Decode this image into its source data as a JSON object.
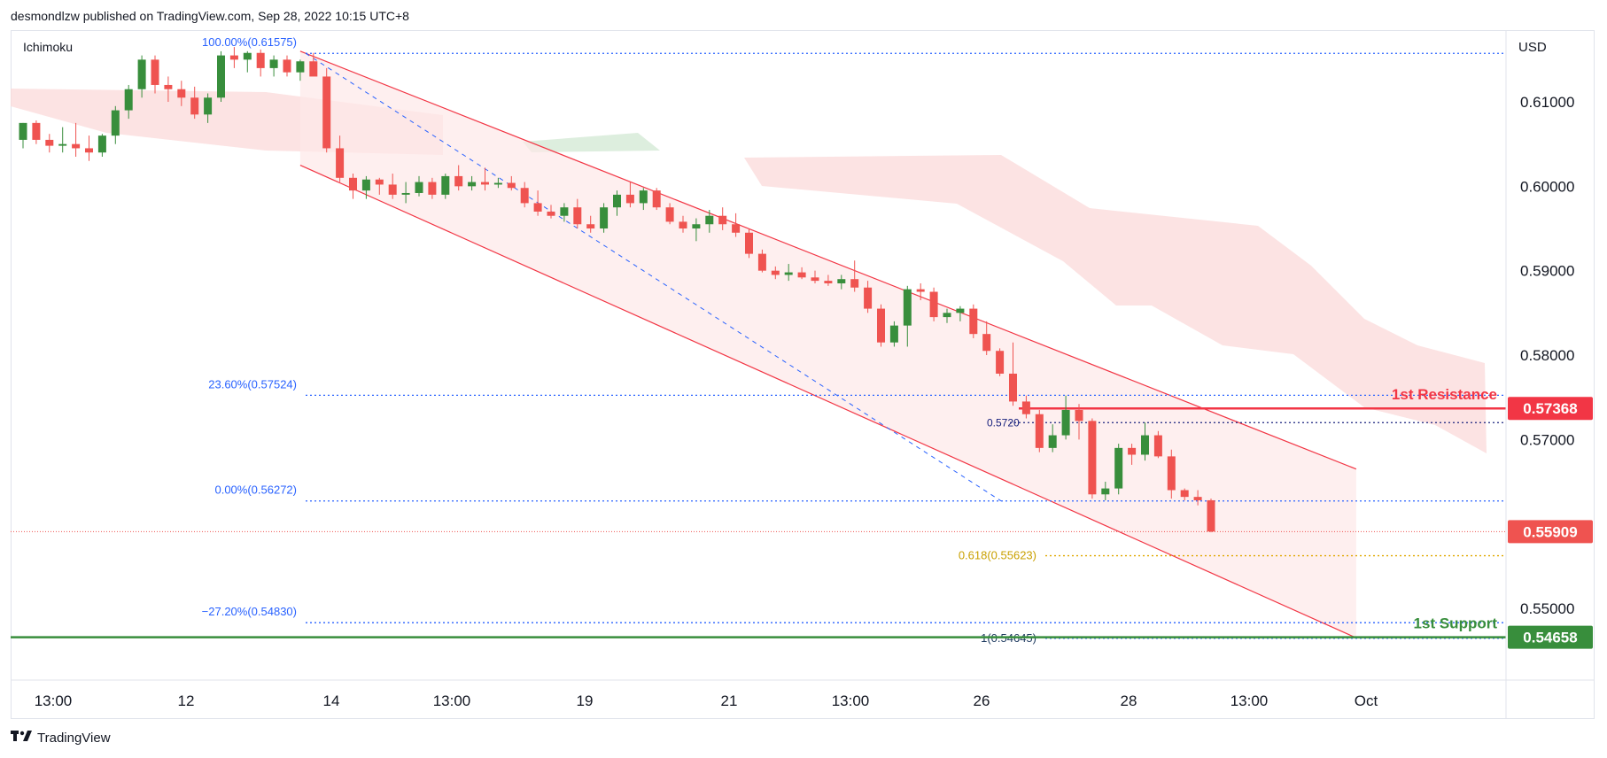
{
  "header": {
    "attribution": "desmondlzw published on TradingView.com, Sep 28, 2022 10:15 UTC+8"
  },
  "footer": {
    "brand": "TradingView",
    "logo": "tradingview-logo-icon"
  },
  "indicator_label": "Ichimoku",
  "currency": "USD",
  "colors": {
    "up": "#388e3c",
    "down": "#ef5350",
    "channel": "#f23645",
    "cloud_red": "#fbd9d9",
    "cloud_green": "#d4ead6",
    "fib": "#2962ff",
    "fib_text": "#2962ff",
    "ext_gold": "#e0a800",
    "resistance": "#f23645",
    "support": "#388e3c",
    "price": "#ef5350"
  },
  "chart_data": {
    "type": "candlestick",
    "title": "",
    "ylim": [
      0.5415,
      0.6185
    ],
    "y_ticks": [
      "0.61000",
      "0.60000",
      "0.59000",
      "0.58000",
      "0.57000",
      "0.55000"
    ],
    "x_ticks": [
      "13:00",
      "12",
      "14",
      "13:00",
      "19",
      "21",
      "13:00",
      "26",
      "28",
      "13:00",
      "Oct"
    ],
    "candles": [
      [
        0.6055,
        0.6075,
        0.6045,
        0.6075
      ],
      [
        0.6075,
        0.6078,
        0.605,
        0.6055
      ],
      [
        0.6055,
        0.6062,
        0.604,
        0.6048
      ],
      [
        0.6048,
        0.607,
        0.604,
        0.605
      ],
      [
        0.605,
        0.6075,
        0.6035,
        0.6045
      ],
      [
        0.6045,
        0.606,
        0.603,
        0.604
      ],
      [
        0.604,
        0.6062,
        0.6035,
        0.606
      ],
      [
        0.606,
        0.6095,
        0.605,
        0.609
      ],
      [
        0.609,
        0.612,
        0.608,
        0.6115
      ],
      [
        0.6115,
        0.6155,
        0.6105,
        0.615
      ],
      [
        0.615,
        0.6155,
        0.611,
        0.612
      ],
      [
        0.612,
        0.613,
        0.61,
        0.6115
      ],
      [
        0.6115,
        0.6125,
        0.6095,
        0.6105
      ],
      [
        0.6105,
        0.6118,
        0.608,
        0.6085
      ],
      [
        0.6085,
        0.611,
        0.6075,
        0.6105
      ],
      [
        0.6105,
        0.616,
        0.61,
        0.6155
      ],
      [
        0.6155,
        0.6165,
        0.614,
        0.615
      ],
      [
        0.615,
        0.616,
        0.6135,
        0.6158
      ],
      [
        0.6158,
        0.6162,
        0.613,
        0.614
      ],
      [
        0.614,
        0.6155,
        0.613,
        0.615
      ],
      [
        0.615,
        0.6155,
        0.613,
        0.6135
      ],
      [
        0.6135,
        0.615,
        0.6125,
        0.6148
      ],
      [
        0.6148,
        0.6158,
        0.6135,
        0.613
      ],
      [
        0.613,
        0.614,
        0.604,
        0.6045
      ],
      [
        0.6045,
        0.606,
        0.6005,
        0.601
      ],
      [
        0.601,
        0.6015,
        0.5985,
        0.5995
      ],
      [
        0.5995,
        0.6012,
        0.5985,
        0.6008
      ],
      [
        0.6008,
        0.601,
        0.599,
        0.6002
      ],
      [
        0.6002,
        0.6015,
        0.5985,
        0.599
      ],
      [
        0.599,
        0.6005,
        0.598,
        0.5992
      ],
      [
        0.5992,
        0.6012,
        0.5988,
        0.6005
      ],
      [
        0.6005,
        0.601,
        0.5985,
        0.599
      ],
      [
        0.599,
        0.6015,
        0.5985,
        0.6012
      ],
      [
        0.6012,
        0.6025,
        0.5995,
        0.6
      ],
      [
        0.6,
        0.6012,
        0.5995,
        0.6005
      ],
      [
        0.6005,
        0.6022,
        0.5995,
        0.6002
      ],
      [
        0.6002,
        0.601,
        0.5998,
        0.6004
      ],
      [
        0.6004,
        0.6012,
        0.5995,
        0.5998
      ],
      [
        0.5998,
        0.6005,
        0.5975,
        0.598
      ],
      [
        0.598,
        0.5995,
        0.5965,
        0.597
      ],
      [
        0.597,
        0.5978,
        0.5962,
        0.5965
      ],
      [
        0.5965,
        0.598,
        0.5958,
        0.5975
      ],
      [
        0.5975,
        0.5985,
        0.595,
        0.5955
      ],
      [
        0.5955,
        0.5965,
        0.5945,
        0.595
      ],
      [
        0.595,
        0.598,
        0.5945,
        0.5975
      ],
      [
        0.5975,
        0.5995,
        0.5965,
        0.599
      ],
      [
        0.599,
        0.6005,
        0.5975,
        0.598
      ],
      [
        0.598,
        0.5998,
        0.5972,
        0.5995
      ],
      [
        0.5995,
        0.5998,
        0.5972,
        0.5975
      ],
      [
        0.5975,
        0.598,
        0.5955,
        0.5958
      ],
      [
        0.5958,
        0.5965,
        0.5945,
        0.595
      ],
      [
        0.595,
        0.5962,
        0.5935,
        0.5955
      ],
      [
        0.5955,
        0.5972,
        0.5945,
        0.5965
      ],
      [
        0.5965,
        0.5975,
        0.5948,
        0.5955
      ],
      [
        0.5955,
        0.5968,
        0.594,
        0.5945
      ],
      [
        0.5945,
        0.595,
        0.5915,
        0.592
      ],
      [
        0.592,
        0.5925,
        0.5898,
        0.59
      ],
      [
        0.59,
        0.5905,
        0.589,
        0.5895
      ],
      [
        0.5895,
        0.5908,
        0.5888,
        0.5898
      ],
      [
        0.5898,
        0.5904,
        0.589,
        0.5892
      ],
      [
        0.5892,
        0.59,
        0.5885,
        0.5888
      ],
      [
        0.5888,
        0.5895,
        0.5882,
        0.5885
      ],
      [
        0.5885,
        0.5895,
        0.5878,
        0.589
      ],
      [
        0.589,
        0.5912,
        0.5875,
        0.588
      ],
      [
        0.588,
        0.5888,
        0.585,
        0.5855
      ],
      [
        0.5855,
        0.586,
        0.581,
        0.5815
      ],
      [
        0.5815,
        0.584,
        0.581,
        0.5835
      ],
      [
        0.5835,
        0.5882,
        0.581,
        0.5878
      ],
      [
        0.5878,
        0.5885,
        0.5865,
        0.5875
      ],
      [
        0.5875,
        0.588,
        0.584,
        0.5845
      ],
      [
        0.5845,
        0.5855,
        0.5838,
        0.585
      ],
      [
        0.585,
        0.5858,
        0.584,
        0.5855
      ],
      [
        0.5855,
        0.586,
        0.582,
        0.5825
      ],
      [
        0.5825,
        0.584,
        0.58,
        0.5805
      ],
      [
        0.5805,
        0.5808,
        0.5775,
        0.5778
      ],
      [
        0.5778,
        0.5815,
        0.574,
        0.5745
      ],
      [
        0.5745,
        0.5752,
        0.5725,
        0.573
      ],
      [
        0.573,
        0.5735,
        0.5685,
        0.569
      ],
      [
        0.569,
        0.5718,
        0.5685,
        0.5705
      ],
      [
        0.5705,
        0.5752,
        0.57,
        0.5735
      ],
      [
        0.5735,
        0.5742,
        0.57,
        0.5722
      ],
      [
        0.5722,
        0.5725,
        0.563,
        0.5635
      ],
      [
        0.5635,
        0.565,
        0.5628,
        0.5642
      ],
      [
        0.5642,
        0.5695,
        0.5635,
        0.569
      ],
      [
        0.569,
        0.5695,
        0.567,
        0.5682
      ],
      [
        0.5682,
        0.572,
        0.5675,
        0.5705
      ],
      [
        0.5705,
        0.571,
        0.5678,
        0.568
      ],
      [
        0.568,
        0.5688,
        0.563,
        0.564
      ],
      [
        0.564,
        0.5642,
        0.5628,
        0.5632
      ],
      [
        0.5632,
        0.564,
        0.5622,
        0.5628
      ],
      [
        0.5628,
        0.563,
        0.559,
        0.5591
      ]
    ],
    "fib_levels": [
      {
        "label": "100.00%(0.61575)",
        "value": 0.61575
      },
      {
        "label": "23.60%(0.57524)",
        "value": 0.57524
      },
      {
        "label": "0.00%(0.56272)",
        "value": 0.56272
      },
      {
        "label": "−27.20%(0.54830)",
        "value": 0.5483
      }
    ],
    "fib_small_label": "0.5720",
    "fib_small_value": 0.572,
    "extension_levels": [
      {
        "label": "0.618(0.55623)",
        "value": 0.55623
      },
      {
        "label": "1(0.54645)",
        "value": 0.54645
      }
    ],
    "resistance": {
      "label": "1st Resistance",
      "value": 0.57368,
      "price_label": "0.57368"
    },
    "support": {
      "label": "1st Support",
      "value": 0.54658,
      "price_label": "0.54658"
    },
    "current_price": {
      "value": 0.55909,
      "price_label": "0.55909"
    },
    "channel": {
      "upper": [
        [
          21,
          0.616
        ],
        [
          101,
          0.5665
        ]
      ],
      "lower": [
        [
          21,
          0.6025
        ],
        [
          101,
          0.5465
        ]
      ]
    }
  }
}
